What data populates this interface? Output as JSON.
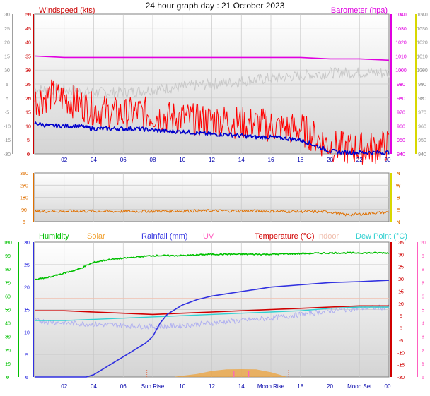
{
  "title": "24 hour graph day : 21 October 2023",
  "colors": {
    "wind": "#ff0000",
    "gust_bg": "#c8c8c8",
    "baro": "#e000e0",
    "windavg": "#0000cc",
    "direction": "#e07000",
    "humidity": "#00c000",
    "solar": "#f0a030",
    "rain": "#3030e0",
    "uv": "#ff60c0",
    "temperature": "#d00000",
    "indoor": "#f0c0b0",
    "dewpoint": "#30d0d0",
    "dew_bg": "#b0b0f0",
    "axis_left": "#a0a0a0",
    "axis_right": "#d8d800",
    "grid": "#c8c8c8"
  },
  "chart_data": [
    {
      "type": "line",
      "panel": "wind",
      "left_axis_label": "Windspeed (kts)",
      "right_axis_label": "Barometer (hpa)",
      "y_left_ticks": [
        50,
        45,
        40,
        35,
        30,
        25,
        20,
        15,
        10,
        5,
        0
      ],
      "y_left_outer_ticks": [
        30,
        25,
        20,
        15,
        10,
        5,
        0,
        -5,
        -10,
        -15,
        -20
      ],
      "y_right_ticks": [
        1040,
        1030,
        1020,
        1010,
        1000,
        990,
        980,
        970,
        960,
        950,
        940
      ],
      "y_right_outer_ticks": [
        1040,
        1030,
        1020,
        1010,
        1000,
        990,
        980,
        970,
        960,
        950,
        940
      ],
      "x_ticks": [
        "02",
        "04",
        "06",
        "08",
        "10",
        "12",
        "14",
        "16",
        "18",
        "20",
        "22",
        "00"
      ],
      "x_range_hours": [
        0,
        24
      ],
      "ylim_left": [
        0,
        50
      ],
      "ylim_right": [
        940,
        1040
      ],
      "series": [
        {
          "name": "Barometer (hpa)",
          "axis": "right",
          "x": [
            0,
            2,
            4,
            6,
            8,
            10,
            12,
            14,
            16,
            18,
            20,
            22,
            24
          ],
          "values": [
            1010,
            1009,
            1009,
            1009,
            1009,
            1009,
            1009,
            1009,
            1009,
            1009,
            1008,
            1008,
            1007
          ]
        },
        {
          "axis": "left",
          "style": "grey",
          "x": [
            0,
            2,
            4,
            6,
            8,
            10,
            12,
            14,
            16,
            18,
            20,
            22,
            24
          ],
          "values": [
            23,
            23,
            22,
            22,
            23,
            24,
            25,
            26,
            27,
            28,
            29,
            29,
            29
          ]
        },
        {
          "name": "Windspeed (kts)",
          "axis": "left",
          "noisy": true,
          "x": [
            0,
            1,
            2,
            3,
            4,
            5,
            6,
            7,
            8,
            9,
            10,
            11,
            12,
            13,
            14,
            15,
            16,
            17,
            18,
            19,
            20,
            21,
            22,
            23,
            24
          ],
          "values": [
            19,
            21,
            20,
            18,
            16,
            15,
            14,
            15,
            14,
            13,
            13,
            12,
            12,
            12,
            11,
            11,
            10,
            9,
            9,
            6,
            3,
            2,
            2,
            2,
            3
          ]
        },
        {
          "axis": "left",
          "style": "blue",
          "x": [
            0,
            1,
            2,
            3,
            4,
            5,
            6,
            7,
            8,
            9,
            10,
            11,
            12,
            13,
            14,
            15,
            16,
            17,
            18,
            19,
            20,
            21,
            22,
            23,
            24
          ],
          "values": [
            11,
            10,
            10,
            10,
            9,
            9,
            9,
            9,
            8.5,
            8,
            8,
            7.5,
            7,
            7,
            6.5,
            6,
            6,
            5.5,
            5,
            3,
            1,
            0.5,
            0.5,
            0.5,
            0.5
          ]
        }
      ]
    },
    {
      "type": "line",
      "panel": "direction",
      "y_left_ticks": [
        360,
        270,
        180,
        90,
        0
      ],
      "y_right_ticks": [
        "N",
        "W",
        "S",
        "E",
        "N"
      ],
      "ylim": [
        0,
        360
      ],
      "series": [
        {
          "axis": "left",
          "noisy": true,
          "x": [
            0,
            3,
            6,
            9,
            12,
            15,
            18,
            20,
            21,
            22,
            23,
            24
          ],
          "values": [
            75,
            78,
            75,
            78,
            80,
            78,
            75,
            72,
            50,
            55,
            65,
            70
          ]
        }
      ]
    },
    {
      "type": "line",
      "panel": "thp",
      "legend": [
        "Humidity",
        "Solar",
        "Rainfall (mm)",
        "UV",
        "Temperature (°C)",
        "Indoor",
        "Dew Point (°C)"
      ],
      "y_left_outer_ticks": [
        100,
        90,
        80,
        70,
        60,
        50,
        40,
        30,
        20,
        10,
        0
      ],
      "y_left_ticks": [
        30,
        25,
        20,
        15,
        10,
        5,
        0
      ],
      "y_right_ticks": [
        35,
        30,
        25,
        20,
        15,
        10,
        5,
        0,
        -5,
        -10,
        -15,
        -20
      ],
      "y_right_outer_ticks": [
        10,
        9,
        8,
        7,
        6,
        5,
        4,
        3,
        2,
        1,
        0
      ],
      "x_ticks": [
        "02",
        "04",
        "06",
        "Sun Rise",
        "10",
        "12",
        "14",
        "Moon Rise",
        "18",
        "20",
        "Moon Set",
        "00"
      ],
      "ylim_left": [
        0,
        30
      ],
      "ylim_right": [
        -20,
        35
      ],
      "series": [
        {
          "name": "Humidity",
          "axis": "outer_left",
          "x": [
            0,
            1,
            2,
            3,
            4,
            5,
            6,
            7,
            8,
            10,
            12,
            16,
            20,
            24
          ],
          "values": [
            72,
            74,
            77,
            80,
            85,
            87,
            88,
            89,
            90,
            90,
            91,
            91,
            92,
            92
          ]
        },
        {
          "name": "Temperature (°C)",
          "axis": "right",
          "x": [
            0,
            2,
            4,
            6,
            8,
            10,
            12,
            14,
            16,
            18,
            20,
            22,
            24
          ],
          "values": [
            7,
            7,
            6.5,
            6,
            5.5,
            6,
            6.5,
            7,
            7.5,
            8,
            8.5,
            9,
            9
          ]
        },
        {
          "name": "Dew Point (°C)",
          "axis": "right",
          "x": [
            0,
            2,
            4,
            6,
            8,
            10,
            12,
            14,
            16,
            18,
            20,
            22,
            24
          ],
          "values": [
            3,
            3,
            3.5,
            4,
            4.5,
            5,
            5.5,
            6,
            6.5,
            7,
            8,
            8.5,
            8.5
          ]
        },
        {
          "axis": "right",
          "style": "lavender",
          "noisy": true,
          "x": [
            0,
            2,
            4,
            6,
            8,
            10,
            12,
            14,
            16,
            18,
            20,
            22,
            24
          ],
          "values": [
            3,
            2,
            1.5,
            1,
            0.5,
            1,
            2,
            3,
            4,
            5.5,
            7,
            8,
            8.5
          ]
        },
        {
          "name": "Indoor",
          "axis": "right",
          "x": [
            0,
            24
          ],
          "values": [
            12,
            12
          ]
        },
        {
          "name": "Rainfall (mm)",
          "axis": "left",
          "x": [
            0,
            3.5,
            4,
            5,
            6,
            7,
            7.5,
            8,
            8.5,
            9,
            10,
            11,
            12,
            13,
            14,
            15,
            16,
            18,
            20,
            22,
            24
          ],
          "values": [
            0,
            0,
            0.5,
            2.5,
            4.5,
            6.5,
            7.5,
            9,
            12,
            14,
            16,
            17.2,
            18,
            18.5,
            19,
            19.5,
            20,
            20.5,
            21,
            21.2,
            21.5
          ]
        },
        {
          "name": "Solar",
          "axis": "left",
          "style": "area",
          "x": [
            9.5,
            11,
            12,
            13,
            14,
            15,
            16,
            17
          ],
          "values": [
            0,
            0.3,
            0.8,
            1,
            1,
            0.9,
            0.5,
            0
          ]
        }
      ]
    }
  ]
}
